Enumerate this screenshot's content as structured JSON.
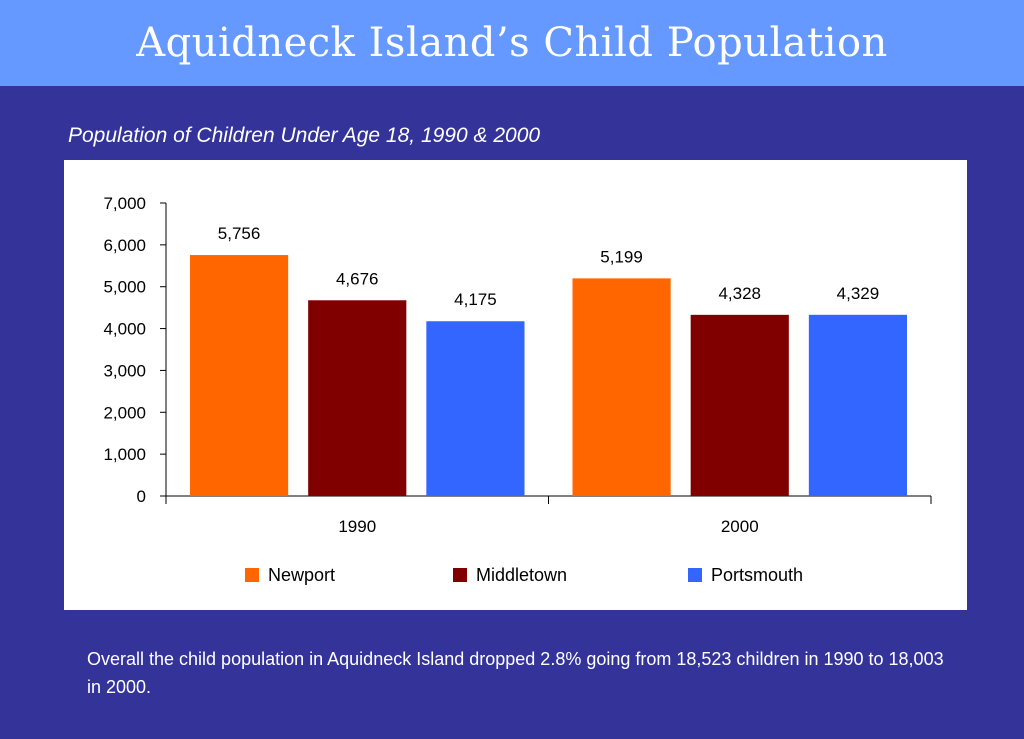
{
  "slide": {
    "title": "Aquidneck Island’s Child Population",
    "subtitle": "Population of Children Under Age 18, 1990 & 2000",
    "caption": "Overall the child population in Aquidneck Island dropped 2.8% going from 18,523 children in 1990 to 18,003 in 2000."
  },
  "chart_data": {
    "type": "bar",
    "title": "Population of Children Under Age 18, 1990 & 2000",
    "xlabel": "",
    "ylabel": "",
    "categories": [
      "1990",
      "2000"
    ],
    "series": [
      {
        "name": "Newport",
        "values": [
          5756,
          5199
        ],
        "labels": [
          "5,756",
          "5,199"
        ],
        "color": "#ff6600"
      },
      {
        "name": "Middletown",
        "values": [
          4676,
          4328
        ],
        "labels": [
          "4,676",
          "4,328"
        ],
        "color": "#800000"
      },
      {
        "name": "Portsmouth",
        "values": [
          4175,
          4329
        ],
        "labels": [
          "4,175",
          "4,329"
        ],
        "color": "#3366ff"
      }
    ],
    "ylim": [
      0,
      7000
    ],
    "yticks": [
      0,
      1000,
      2000,
      3000,
      4000,
      5000,
      6000,
      7000
    ],
    "ytick_labels": [
      "0",
      "1,000",
      "2,000",
      "3,000",
      "4,000",
      "5,000",
      "6,000",
      "7,000"
    ],
    "grid": false,
    "legend_position": "bottom"
  }
}
